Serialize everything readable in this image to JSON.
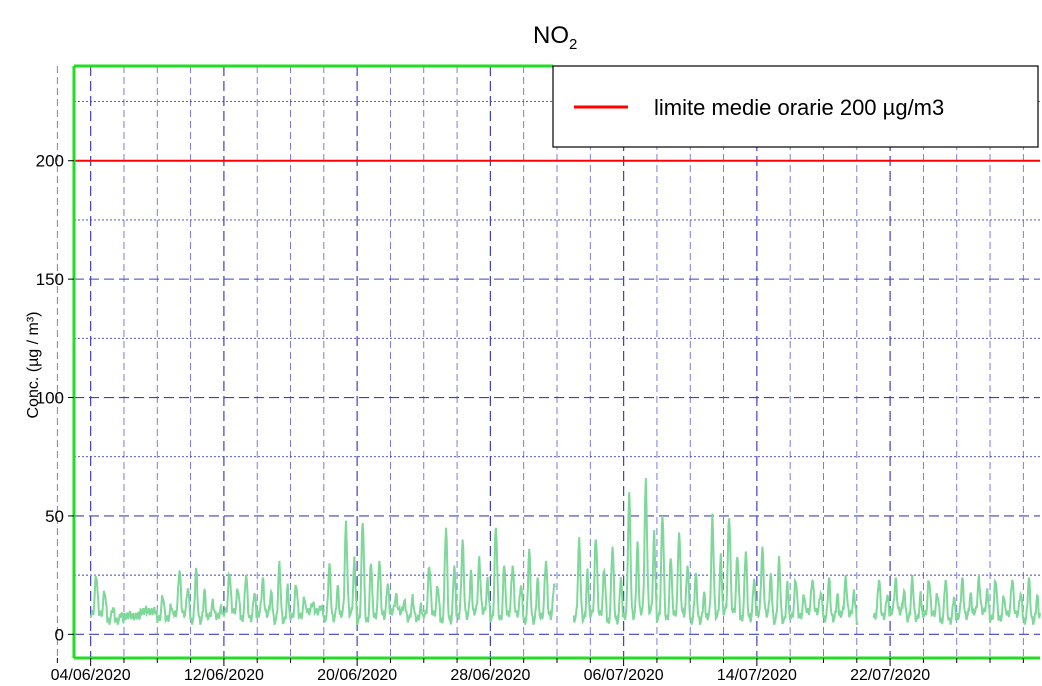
{
  "chart_data": {
    "type": "line",
    "title_main": "NO",
    "title_sub": "2",
    "ylabel": "Conc. (µg / m³)",
    "ylim": [
      -10,
      240
    ],
    "yticks": [
      0,
      50,
      100,
      150,
      200
    ],
    "x_range": [
      "2020-06-03",
      "2020-07-31"
    ],
    "xticks": [
      "04/06/2020",
      "12/06/2020",
      "20/06/2020",
      "28/06/2020",
      "06/07/2020",
      "14/07/2020",
      "22/07/2020"
    ],
    "grid": true,
    "legend": {
      "position": "top-right",
      "entries": [
        {
          "name": "limite medie orarie 200 µg/m3",
          "color": "#ff0000"
        }
      ]
    },
    "limit_line": {
      "value": 200,
      "color": "#ff0000"
    },
    "series_color": "#7fd89a",
    "daily_peaks": [
      {
        "date": "2020-06-04",
        "value": 24
      },
      {
        "date": "2020-06-05",
        "value": 10
      },
      {
        "date": "2020-06-06",
        "value": 7
      },
      {
        "date": "2020-06-07",
        "value": 9
      },
      {
        "date": "2020-06-08",
        "value": 15
      },
      {
        "date": "2020-06-09",
        "value": 26
      },
      {
        "date": "2020-06-10",
        "value": 26
      },
      {
        "date": "2020-06-11",
        "value": 12
      },
      {
        "date": "2020-06-12",
        "value": 25
      },
      {
        "date": "2020-06-13",
        "value": 24
      },
      {
        "date": "2020-06-14",
        "value": 22
      },
      {
        "date": "2020-06-15",
        "value": 28
      },
      {
        "date": "2020-06-16",
        "value": 20
      },
      {
        "date": "2020-06-17",
        "value": 12
      },
      {
        "date": "2020-06-18",
        "value": 28
      },
      {
        "date": "2020-06-19",
        "value": 45
      },
      {
        "date": "2020-06-20",
        "value": 47
      },
      {
        "date": "2020-06-21",
        "value": 30
      },
      {
        "date": "2020-06-22",
        "value": 15
      },
      {
        "date": "2020-06-23",
        "value": 14
      },
      {
        "date": "2020-06-24",
        "value": 28
      },
      {
        "date": "2020-06-25",
        "value": 44
      },
      {
        "date": "2020-06-26",
        "value": 38
      },
      {
        "date": "2020-06-27",
        "value": 30
      },
      {
        "date": "2020-06-28",
        "value": 45
      },
      {
        "date": "2020-06-29",
        "value": 28
      },
      {
        "date": "2020-06-30",
        "value": 34
      },
      {
        "date": "2020-07-01",
        "value": 30
      },
      {
        "date": "2020-07-02",
        "value": 22
      },
      {
        "date": "2020-07-03",
        "value": 38
      },
      {
        "date": "2020-07-04",
        "value": 40
      },
      {
        "date": "2020-07-05",
        "value": 36
      },
      {
        "date": "2020-07-06",
        "value": 58
      },
      {
        "date": "2020-07-07",
        "value": 63
      },
      {
        "date": "2020-07-08",
        "value": 50
      },
      {
        "date": "2020-07-09",
        "value": 42
      },
      {
        "date": "2020-07-10",
        "value": 24
      },
      {
        "date": "2020-07-11",
        "value": 48
      },
      {
        "date": "2020-07-12",
        "value": 49
      },
      {
        "date": "2020-07-13",
        "value": 34
      },
      {
        "date": "2020-07-14",
        "value": 35
      },
      {
        "date": "2020-07-15",
        "value": 30
      }
    ]
  },
  "date_labels": [
    "04/06/2020",
    "12/06/2020",
    "20/06/2020",
    "28/06/2020",
    "06/07/2020",
    "14/07/2020",
    "22/07/2020"
  ]
}
